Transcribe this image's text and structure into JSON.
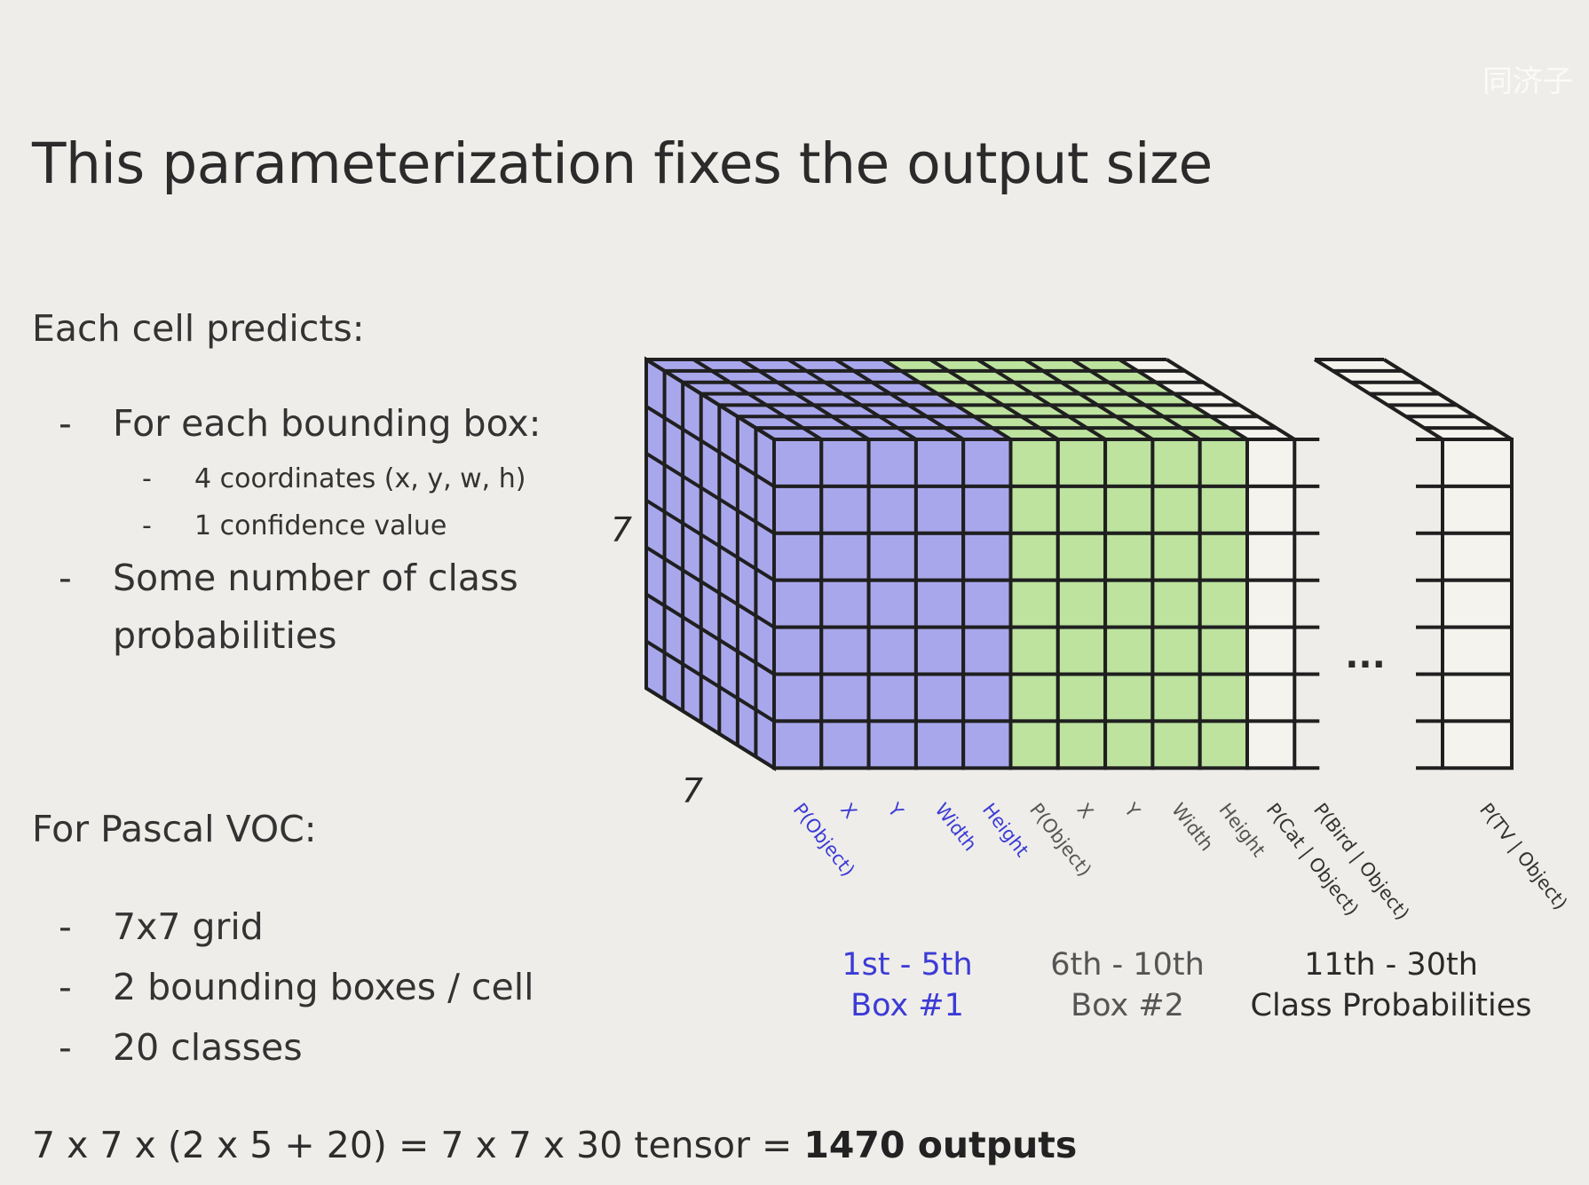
{
  "watermark": "同济子",
  "title": "This parameterization fixes the output size",
  "cell_section": {
    "heading": "Each cell predicts:",
    "bullet_1": "For each bounding box:",
    "sub_1": "4 coordinates (x, y, w, h)",
    "sub_2": "1 confidence value",
    "bullet_2_line1": "Some number of class",
    "bullet_2_line2": "probabilities",
    "dash": "-"
  },
  "voc_section": {
    "heading": "For Pascal VOC:",
    "items": [
      "7x7 grid",
      "2 bounding boxes / cell",
      "20 classes"
    ]
  },
  "formula": {
    "text": "7 x 7 x (2 x 5 + 20) = 7 x 7 x 30 tensor = ",
    "bold": "1470 outputs"
  },
  "diagram": {
    "grid_rows": 7,
    "depth_cells": 7,
    "height_label": "7",
    "depth_label": "7",
    "ellipsis": "...",
    "colors": {
      "box1": "#a9a7ec",
      "box2": "#bde39f",
      "classes": "#f5f3ee",
      "box1_text": "#3b3bd6",
      "box2_text": "#555555"
    },
    "channels": [
      {
        "label": "P(Object)",
        "group": "box1"
      },
      {
        "label": "X",
        "group": "box1"
      },
      {
        "label": "Y",
        "group": "box1"
      },
      {
        "label": "Width",
        "group": "box1"
      },
      {
        "label": "Height",
        "group": "box1"
      },
      {
        "label": "P(Object)",
        "group": "box2"
      },
      {
        "label": "X",
        "group": "box2"
      },
      {
        "label": "Y",
        "group": "box2"
      },
      {
        "label": "Width",
        "group": "box2"
      },
      {
        "label": "Height",
        "group": "box2"
      },
      {
        "label": "P(Cat | Object)",
        "group": "classes"
      },
      {
        "label": "P(Bird | Object)",
        "group": "classes"
      },
      {
        "label": "P(TV | Object)",
        "group": "classes"
      }
    ],
    "group_labels": {
      "box1": {
        "line1": "1st - 5th",
        "line2": "Box #1"
      },
      "box2": {
        "line1": "6th - 10th",
        "line2": "Box #2"
      },
      "classes": {
        "line1": "11th - 30th",
        "line2": "Class Probabilities"
      }
    }
  }
}
